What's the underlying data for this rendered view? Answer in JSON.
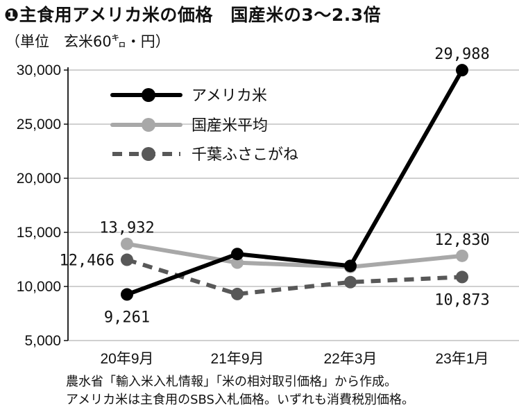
{
  "title": "❶主食用アメリカ米の価格　国産米の3〜2.3倍",
  "unit_label": "（単位　玄米60㌔・円）",
  "source_note": "農水省「輸入米入札情報」「米の相対取引価格」から作成。",
  "explanation_note": "アメリカ米は主食用のSBS入札価格。いずれも消費税別価格。",
  "chart_data": {
    "type": "line",
    "categories": [
      "20年9月",
      "21年9月",
      "22年3月",
      "23年1月"
    ],
    "ylim": [
      5000,
      30000
    ],
    "yticks": [
      5000,
      10000,
      15000,
      20000,
      25000,
      30000
    ],
    "ytick_labels": [
      "5,000",
      "10,000",
      "15,000",
      "20,000",
      "25,000",
      "30,000"
    ],
    "grid": true,
    "legend_position": "top-left",
    "series": [
      {
        "name": "アメリカ米",
        "values": [
          9261,
          13000,
          11900,
          29988
        ],
        "color": "#000000",
        "dashed": false,
        "labels": [
          {
            "index": 0,
            "text": "9,261",
            "pos": "below"
          },
          {
            "index": 3,
            "text": "29,988",
            "pos": "above"
          }
        ]
      },
      {
        "name": "国産米平均",
        "values": [
          13932,
          12200,
          11800,
          12830
        ],
        "color": "#a8a8a8",
        "dashed": false,
        "labels": [
          {
            "index": 0,
            "text": "13,932",
            "pos": "above"
          },
          {
            "index": 3,
            "text": "12,830",
            "pos": "above"
          }
        ]
      },
      {
        "name": "千葉ふさこがね",
        "values": [
          12466,
          9300,
          10400,
          10873
        ],
        "color": "#585858",
        "dashed": true,
        "labels": [
          {
            "index": 0,
            "text": "12,466",
            "pos": "left"
          },
          {
            "index": 3,
            "text": "10,873",
            "pos": "below"
          }
        ]
      }
    ]
  }
}
